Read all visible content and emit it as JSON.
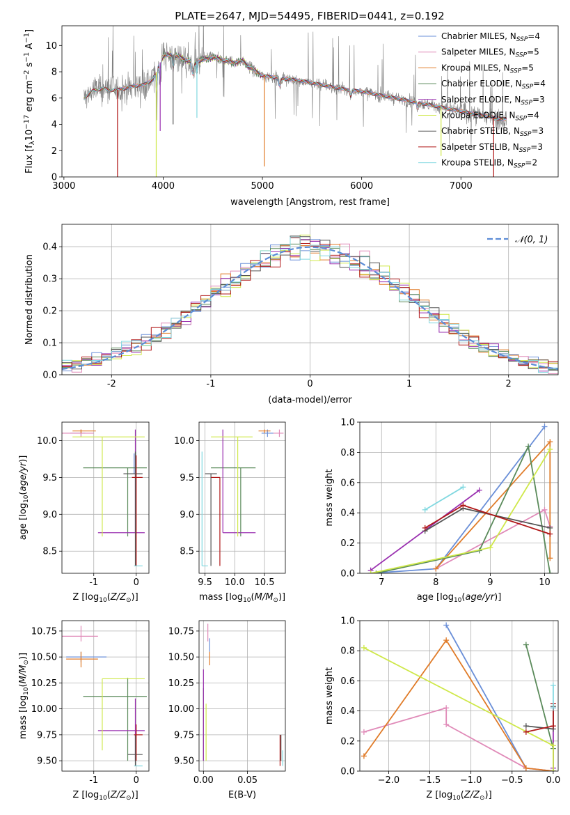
{
  "title": "PLATE=2647, MJD=54495, FIBERID=0441, z=0.192",
  "colors": {
    "Chabrier MILES": "#6a8fd8",
    "Salpeter MILES": "#e08ab8",
    "Kroupa MILES": "#e07b28",
    "Chabrier ELODIE": "#5a8a5a",
    "Salpeter ELODIE": "#9a30b0",
    "Kroupa ELODIE": "#cfe84a",
    "Chabrier STELIB": "#555555",
    "Salpeter STELIB": "#b01818",
    "Kroupa STELIB": "#80d8e0",
    "normal": "#5b8cd6",
    "data": "#808080"
  },
  "chart_data": [
    {
      "id": "spectrum",
      "type": "line",
      "title": "PLATE=2647, MJD=54495, FIBERID=0441, z=0.192",
      "xlabel": "wavelength [Angstrom, rest frame]",
      "ylabel": "Flux [f_λ 10^-17 erg cm^-2 s^-1 A^-1]",
      "xlim": [
        2980,
        7980
      ],
      "ylim": [
        0,
        11.5
      ],
      "xticks": [
        3000,
        4000,
        5000,
        6000,
        7000
      ],
      "yticks": [
        0,
        2,
        4,
        6,
        8,
        10
      ],
      "grid": false,
      "legend_position": "top-right",
      "legend": [
        {
          "label": "Chabrier MILES, N",
          "sub": "SSP",
          "tail": "=4"
        },
        {
          "label": "Salpeter MILES, N",
          "sub": "SSP",
          "tail": "=5"
        },
        {
          "label": "Kroupa MILES, N",
          "sub": "SSP",
          "tail": "=5"
        },
        {
          "label": "Chabrier ELODIE, N",
          "sub": "SSP",
          "tail": "=4"
        },
        {
          "label": "Salpeter ELODIE, N",
          "sub": "SSP",
          "tail": "=3"
        },
        {
          "label": "Kroupa ELODIE, N",
          "sub": "SSP",
          "tail": "=4"
        },
        {
          "label": "Chabrier STELIB, N",
          "sub": "SSP",
          "tail": "=3"
        },
        {
          "label": "Salpeter STELIB, N",
          "sub": "SSP",
          "tail": "=3"
        },
        {
          "label": "Kroupa STELIB, N",
          "sub": "SSP",
          "tail": "=2"
        }
      ],
      "continuum": [
        [
          3200,
          6.0
        ],
        [
          3300,
          6.6
        ],
        [
          3400,
          6.7
        ],
        [
          3500,
          6.6
        ],
        [
          3600,
          6.7
        ],
        [
          3700,
          6.9
        ],
        [
          3800,
          7.0
        ],
        [
          3900,
          7.4
        ],
        [
          3950,
          8.4
        ],
        [
          4000,
          9.2
        ],
        [
          4100,
          9.3
        ],
        [
          4200,
          9.0
        ],
        [
          4300,
          8.7
        ],
        [
          4400,
          8.9
        ],
        [
          4500,
          9.1
        ],
        [
          4600,
          8.9
        ],
        [
          4700,
          8.7
        ],
        [
          4800,
          8.8
        ],
        [
          4900,
          8.2
        ],
        [
          5000,
          7.7
        ],
        [
          5200,
          7.5
        ],
        [
          5400,
          7.3
        ],
        [
          5600,
          7.0
        ],
        [
          5800,
          6.7
        ],
        [
          6000,
          6.5
        ],
        [
          6200,
          6.2
        ],
        [
          6400,
          5.9
        ],
        [
          6600,
          5.6
        ],
        [
          6800,
          5.3
        ],
        [
          7000,
          5.0
        ],
        [
          7200,
          4.7
        ],
        [
          7400,
          4.4
        ]
      ],
      "dips": [
        3540,
        3930,
        3970,
        4100,
        4340,
        5020,
        6800,
        7330
      ]
    },
    {
      "id": "residuals",
      "type": "line",
      "xlabel": "(data-model)/error",
      "ylabel": "Normed distribution",
      "xlim": [
        -2.5,
        2.5
      ],
      "ylim": [
        0,
        0.47
      ],
      "xticks": [
        -2,
        -1,
        0,
        1,
        2
      ],
      "yticks": [
        0.0,
        0.1,
        0.2,
        0.3,
        0.4
      ],
      "grid": true,
      "legend_position": "top-right",
      "legend": [
        {
          "label": "𝒩(0, 1)"
        }
      ],
      "bins": {
        "start": -2.5,
        "width": 0.1,
        "count": 50
      }
    },
    {
      "id": "age-vs-Z",
      "type": "scatter",
      "xlabel": "Z [log10(Z/Z⊙)]",
      "ylabel": "age [log10(age/yr)]",
      "xlim": [
        -1.75,
        0.3
      ],
      "ylim": [
        8.2,
        10.25
      ],
      "xticks": [
        -1,
        0
      ],
      "yticks": [
        8.5,
        9.0,
        9.5,
        10.0
      ],
      "grid": true,
      "points": [
        {
          "model": "Chabrier MILES",
          "x": -1.3,
          "y": 10.1,
          "xlo": -1.55,
          "xhi": -1.2,
          "ylo": 10.05,
          "yhi": 10.15
        },
        {
          "model": "Chabrier MILES",
          "x": -0.05,
          "y": 9.82,
          "xlo": -0.06,
          "xhi": -0.04,
          "ylo": 9.55,
          "yhi": 9.82
        },
        {
          "model": "Salpeter MILES",
          "x": -1.3,
          "y": 10.1,
          "xlo": -1.75,
          "xhi": -1.0,
          "ylo": 10.05,
          "yhi": 10.15
        },
        {
          "model": "Kroupa MILES",
          "x": -1.3,
          "y": 10.13,
          "xlo": -1.5,
          "xhi": -0.95,
          "ylo": 10.1,
          "yhi": 10.15
        },
        {
          "model": "Chabrier ELODIE",
          "x": -0.2,
          "y": 9.63,
          "xlo": -1.25,
          "xhi": 0.25,
          "ylo": 8.7,
          "yhi": 9.63
        },
        {
          "model": "Salpeter ELODIE",
          "x": -0.02,
          "y": 8.75,
          "xlo": -0.9,
          "xhi": 0.2,
          "ylo": 8.75,
          "yhi": 10.15
        },
        {
          "model": "Kroupa ELODIE",
          "x": -0.8,
          "y": 10.05,
          "xlo": -1.5,
          "xhi": 0.2,
          "ylo": 8.7,
          "yhi": 10.05
        },
        {
          "model": "Chabrier STELIB",
          "x": -0.02,
          "y": 9.55,
          "xlo": -0.3,
          "xhi": 0.15,
          "ylo": 8.3,
          "yhi": 9.85
        },
        {
          "model": "Salpeter STELIB",
          "x": 0.0,
          "y": 9.5,
          "xlo": -0.1,
          "xhi": 0.15,
          "ylo": 8.3,
          "yhi": 9.8
        },
        {
          "model": "Kroupa STELIB",
          "x": 0.0,
          "y": 8.3,
          "xlo": -0.05,
          "xhi": 0.15,
          "ylo": 8.3,
          "yhi": 8.3
        }
      ]
    },
    {
      "id": "age-vs-mass",
      "type": "scatter",
      "xlabel": "mass [log10(M/M⊙)]",
      "ylabel": "",
      "xlim": [
        9.4,
        10.85
      ],
      "ylim": [
        8.2,
        10.25
      ],
      "xticks": [
        9.5,
        10.0,
        10.5
      ],
      "yticks": [
        8.5,
        9.0,
        9.5,
        10.0
      ],
      "grid": true,
      "points": [
        {
          "model": "Chabrier MILES",
          "x": 10.55,
          "y": 10.1,
          "xlo": 10.45,
          "xhi": 10.65,
          "ylo": 10.05,
          "yhi": 10.15
        },
        {
          "model": "Salpeter MILES",
          "x": 10.75,
          "y": 10.1,
          "xlo": 10.65,
          "xhi": 10.82,
          "ylo": 10.05,
          "yhi": 10.15
        },
        {
          "model": "Kroupa MILES",
          "x": 10.5,
          "y": 10.13,
          "xlo": 10.4,
          "xhi": 10.6,
          "ylo": 10.1,
          "yhi": 10.15
        },
        {
          "model": "Chabrier ELODIE",
          "x": 10.1,
          "y": 9.63,
          "xlo": 9.6,
          "xhi": 10.35,
          "ylo": 8.7,
          "yhi": 9.63
        },
        {
          "model": "Salpeter ELODIE",
          "x": 9.8,
          "y": 8.75,
          "xlo": 9.8,
          "xhi": 10.35,
          "ylo": 8.75,
          "yhi": 10.15
        },
        {
          "model": "Kroupa ELODIE",
          "x": 10.05,
          "y": 10.05,
          "xlo": 9.6,
          "xhi": 10.3,
          "ylo": 8.7,
          "yhi": 10.05
        },
        {
          "model": "Chabrier STELIB",
          "x": 9.6,
          "y": 9.55,
          "xlo": 9.5,
          "xhi": 9.7,
          "ylo": 8.3,
          "yhi": 9.55
        },
        {
          "model": "Salpeter STELIB",
          "x": 9.75,
          "y": 9.5,
          "xlo": 9.6,
          "xhi": 9.75,
          "ylo": 8.3,
          "yhi": 9.5
        },
        {
          "model": "Kroupa STELIB",
          "x": 9.45,
          "y": 8.3,
          "xlo": 9.45,
          "xhi": 9.55,
          "ylo": 8.3,
          "yhi": 9.85
        }
      ]
    },
    {
      "id": "weight-vs-age",
      "type": "line",
      "xlabel": "age [log10(age/yr)]",
      "ylabel": "mass weight",
      "xlim": [
        6.6,
        10.25
      ],
      "ylim": [
        0,
        1.0
      ],
      "xticks": [
        7,
        8,
        9,
        10
      ],
      "yticks": [
        0.0,
        0.2,
        0.4,
        0.6,
        0.8,
        1.0
      ],
      "grid": true,
      "series": [
        {
          "name": "Chabrier MILES",
          "x": [
            6.8,
            8.0,
            10.0
          ],
          "y": [
            0.0,
            0.03,
            0.97
          ]
        },
        {
          "name": "Salpeter MILES",
          "x": [
            8.0,
            10.0,
            10.1
          ],
          "y": [
            0.03,
            0.42,
            0.31
          ]
        },
        {
          "name": "Kroupa MILES",
          "x": [
            8.0,
            10.1,
            10.1
          ],
          "y": [
            0.03,
            0.87,
            0.1
          ]
        },
        {
          "name": "Chabrier ELODIE",
          "x": [
            6.9,
            8.8,
            9.7,
            10.1
          ],
          "y": [
            0.0,
            0.15,
            0.84,
            0.0
          ]
        },
        {
          "name": "Salpeter ELODIE",
          "x": [
            6.8,
            8.8
          ],
          "y": [
            0.02,
            0.55
          ]
        },
        {
          "name": "Kroupa ELODIE",
          "x": [
            6.8,
            9.0,
            10.1
          ],
          "y": [
            0.0,
            0.17,
            0.82
          ]
        },
        {
          "name": "Chabrier STELIB",
          "x": [
            7.8,
            8.5,
            10.1
          ],
          "y": [
            0.28,
            0.43,
            0.3
          ]
        },
        {
          "name": "Salpeter STELIB",
          "x": [
            7.8,
            8.5,
            10.1
          ],
          "y": [
            0.3,
            0.45,
            0.26
          ]
        },
        {
          "name": "Kroupa STELIB",
          "x": [
            7.8,
            8.5
          ],
          "y": [
            0.42,
            0.57
          ]
        }
      ]
    },
    {
      "id": "mass-vs-Z",
      "type": "scatter",
      "xlabel": "Z [log10(Z/Z⊙)]",
      "ylabel": "mass [log10(M/M⊙)]",
      "xlim": [
        -1.75,
        0.3
      ],
      "ylim": [
        9.4,
        10.85
      ],
      "xticks": [
        -1,
        0
      ],
      "yticks": [
        9.5,
        9.75,
        10.0,
        10.25,
        10.5,
        10.75
      ],
      "grid": true,
      "points": [
        {
          "model": "Chabrier MILES",
          "x": -1.3,
          "y": 10.5,
          "xlo": -1.65,
          "xhi": -0.7,
          "ylo": 10.45,
          "yhi": 10.55
        },
        {
          "model": "Salpeter MILES",
          "x": -1.3,
          "y": 10.7,
          "xlo": -1.75,
          "xhi": -0.9,
          "ylo": 10.65,
          "yhi": 10.8
        },
        {
          "model": "Kroupa MILES",
          "x": -1.3,
          "y": 10.48,
          "xlo": -1.65,
          "xhi": -0.9,
          "ylo": 10.4,
          "yhi": 10.55
        },
        {
          "model": "Chabrier ELODIE",
          "x": -0.2,
          "y": 10.12,
          "xlo": -1.25,
          "xhi": 0.25,
          "ylo": 9.5,
          "yhi": 10.3
        },
        {
          "model": "Salpeter ELODIE",
          "x": -0.02,
          "y": 9.79,
          "xlo": -0.9,
          "xhi": 0.2,
          "ylo": 9.5,
          "yhi": 10.1
        },
        {
          "model": "Kroupa ELODIE",
          "x": -0.8,
          "y": 10.29,
          "xlo": -0.8,
          "xhi": 0.2,
          "ylo": 9.6,
          "yhi": 10.29
        },
        {
          "model": "Chabrier STELIB",
          "x": -0.02,
          "y": 9.56,
          "xlo": -0.2,
          "xhi": 0.15,
          "ylo": 9.45,
          "yhi": 9.75
        },
        {
          "model": "Salpeter STELIB",
          "x": 0.0,
          "y": 9.75,
          "xlo": -0.05,
          "xhi": 0.15,
          "ylo": 9.5,
          "yhi": 9.85
        },
        {
          "model": "Kroupa STELIB",
          "x": 0.0,
          "y": 9.45,
          "xlo": -0.05,
          "xhi": 0.15,
          "ylo": 9.45,
          "yhi": 9.45
        }
      ]
    },
    {
      "id": "mass-vs-EBV",
      "type": "scatter",
      "xlabel": "E(B-V)",
      "ylabel": "",
      "xlim": [
        -0.005,
        0.093
      ],
      "ylim": [
        9.4,
        10.85
      ],
      "xticks": [
        0.0,
        0.05
      ],
      "yticks": [
        9.5,
        9.75,
        10.0,
        10.25,
        10.5,
        10.75
      ],
      "grid": true,
      "points": [
        {
          "model": "Chabrier MILES",
          "x": 0.007,
          "y": 10.62,
          "xlo": 0.007,
          "xhi": 0.007,
          "ylo": 10.55,
          "yhi": 10.68
        },
        {
          "model": "Salpeter MILES",
          "x": 0.005,
          "y": 10.75,
          "xlo": 0.005,
          "xhi": 0.005,
          "ylo": 10.65,
          "yhi": 10.82
        },
        {
          "model": "Kroupa MILES",
          "x": 0.007,
          "y": 10.5,
          "xlo": 0.007,
          "xhi": 0.007,
          "ylo": 10.42,
          "yhi": 10.55
        },
        {
          "model": "Chabrier ELODIE",
          "x": 0.0,
          "y": 9.9,
          "xlo": 0.0,
          "xhi": 0.0,
          "ylo": 9.5,
          "yhi": 10.2
        },
        {
          "model": "Salpeter ELODIE",
          "x": 0.0,
          "y": 9.9,
          "xlo": 0.0,
          "xhi": 0.0,
          "ylo": 9.5,
          "yhi": 10.38
        },
        {
          "model": "Kroupa ELODIE",
          "x": 0.003,
          "y": 9.8,
          "xlo": 0.003,
          "xhi": 0.003,
          "ylo": 9.5,
          "yhi": 10.05
        },
        {
          "model": "Chabrier STELIB",
          "x": 0.088,
          "y": 9.6,
          "xlo": 0.088,
          "xhi": 0.088,
          "ylo": 9.5,
          "yhi": 9.75
        },
        {
          "model": "Salpeter STELIB",
          "x": 0.087,
          "y": 9.6,
          "xlo": 0.087,
          "xhi": 0.087,
          "ylo": 9.45,
          "yhi": 9.75
        },
        {
          "model": "Kroupa STELIB",
          "x": 0.09,
          "y": 9.55,
          "xlo": 0.09,
          "xhi": 0.09,
          "ylo": 9.45,
          "yhi": 9.6
        }
      ]
    },
    {
      "id": "weight-vs-Z",
      "type": "line",
      "xlabel": "Z [log10(Z/Z⊙)]",
      "ylabel": "mass weight",
      "xlim": [
        -2.35,
        0.06
      ],
      "ylim": [
        0,
        1.0
      ],
      "xticks": [
        -2.0,
        -1.5,
        -1.0,
        -0.5,
        0.0
      ],
      "yticks": [
        0.0,
        0.2,
        0.4,
        0.6,
        0.8,
        1.0
      ],
      "grid": true,
      "series": [
        {
          "name": "Chabrier MILES",
          "x": [
            -1.3,
            -0.33,
            0.0
          ],
          "y": [
            0.97,
            0.02,
            0.0
          ]
        },
        {
          "name": "Salpeter MILES",
          "x": [
            -2.3,
            -1.3,
            -1.3,
            -0.33,
            0.0
          ],
          "y": [
            0.26,
            0.42,
            0.31,
            0.02,
            0.0
          ]
        },
        {
          "name": "Kroupa MILES",
          "x": [
            -2.3,
            -1.3,
            -0.33,
            0.0
          ],
          "y": [
            0.1,
            0.87,
            0.02,
            0.0
          ]
        },
        {
          "name": "Chabrier ELODIE",
          "x": [
            -0.33,
            0.0,
            0.0
          ],
          "y": [
            0.84,
            0.15,
            0.0
          ]
        },
        {
          "name": "Salpeter ELODIE",
          "x": [
            0.0,
            0.0
          ],
          "y": [
            0.02,
            0.42
          ]
        },
        {
          "name": "Kroupa ELODIE",
          "x": [
            -2.3,
            0.0,
            0.0
          ],
          "y": [
            0.82,
            0.17,
            0.0
          ]
        },
        {
          "name": "Chabrier STELIB",
          "x": [
            -0.33,
            0.0,
            0.0
          ],
          "y": [
            0.3,
            0.28,
            0.43
          ]
        },
        {
          "name": "Salpeter STELIB",
          "x": [
            -0.33,
            0.0,
            0.0
          ],
          "y": [
            0.26,
            0.3,
            0.45
          ]
        },
        {
          "name": "Kroupa STELIB",
          "x": [
            0.0,
            0.0
          ],
          "y": [
            0.42,
            0.57
          ]
        }
      ]
    }
  ]
}
